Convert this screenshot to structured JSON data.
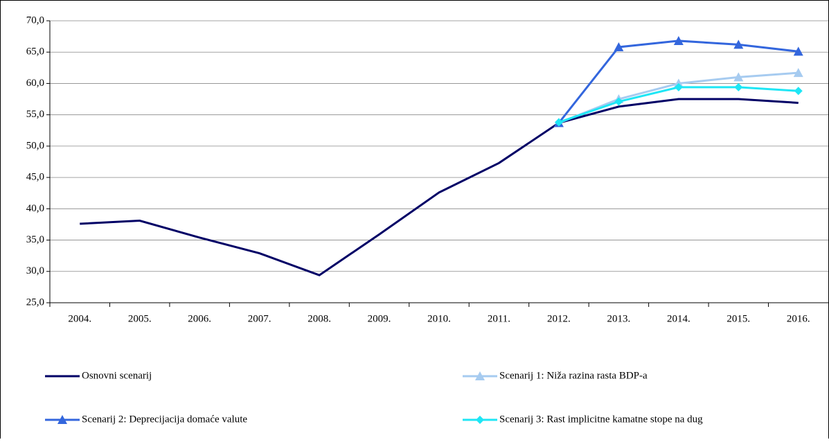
{
  "chart_data": {
    "type": "line",
    "categories": [
      "2004.",
      "2005.",
      "2006.",
      "2007.",
      "2008.",
      "2009.",
      "2010.",
      "2011.",
      "2012.",
      "2013.",
      "2014.",
      "2015.",
      "2016."
    ],
    "series": [
      {
        "name": "Osnovni scenarij",
        "color": "#000066",
        "marker": "none",
        "values": [
          37.6,
          38.1,
          35.4,
          32.9,
          29.4,
          35.9,
          42.6,
          47.3,
          53.7,
          56.3,
          57.5,
          57.5,
          56.9
        ]
      },
      {
        "name": "Scenarij 1: Niža razina rasta BDP-a",
        "color": "#a6cbf0",
        "marker": "triangle",
        "values": [
          null,
          null,
          null,
          null,
          null,
          null,
          null,
          null,
          53.7,
          57.5,
          60.0,
          61.0,
          61.7
        ]
      },
      {
        "name": "Scenarij 2: Deprecijacija domaće valute",
        "color": "#3366dd",
        "marker": "triangle",
        "values": [
          null,
          null,
          null,
          null,
          null,
          null,
          null,
          null,
          53.7,
          65.8,
          66.8,
          66.2,
          65.1
        ]
      },
      {
        "name": "Scenarij 3: Rast implicitne kamatne stope na dug",
        "color": "#1ee6f5",
        "marker": "diamond",
        "values": [
          null,
          null,
          null,
          null,
          null,
          null,
          null,
          null,
          53.8,
          57.1,
          59.4,
          59.4,
          58.8
        ]
      }
    ],
    "ylim": [
      25,
      70
    ],
    "yticks": [
      {
        "value": 25,
        "label": "25,0"
      },
      {
        "value": 30,
        "label": "30,0"
      },
      {
        "value": 35,
        "label": "35,0"
      },
      {
        "value": 40,
        "label": "40,0"
      },
      {
        "value": 45,
        "label": "45,0"
      },
      {
        "value": 50,
        "label": "50,0"
      },
      {
        "value": 55,
        "label": "55,0"
      },
      {
        "value": 60,
        "label": "60,0"
      },
      {
        "value": 65,
        "label": "65,0"
      },
      {
        "value": 70,
        "label": "70,0"
      }
    ],
    "grid": true,
    "legend": "bottom"
  }
}
